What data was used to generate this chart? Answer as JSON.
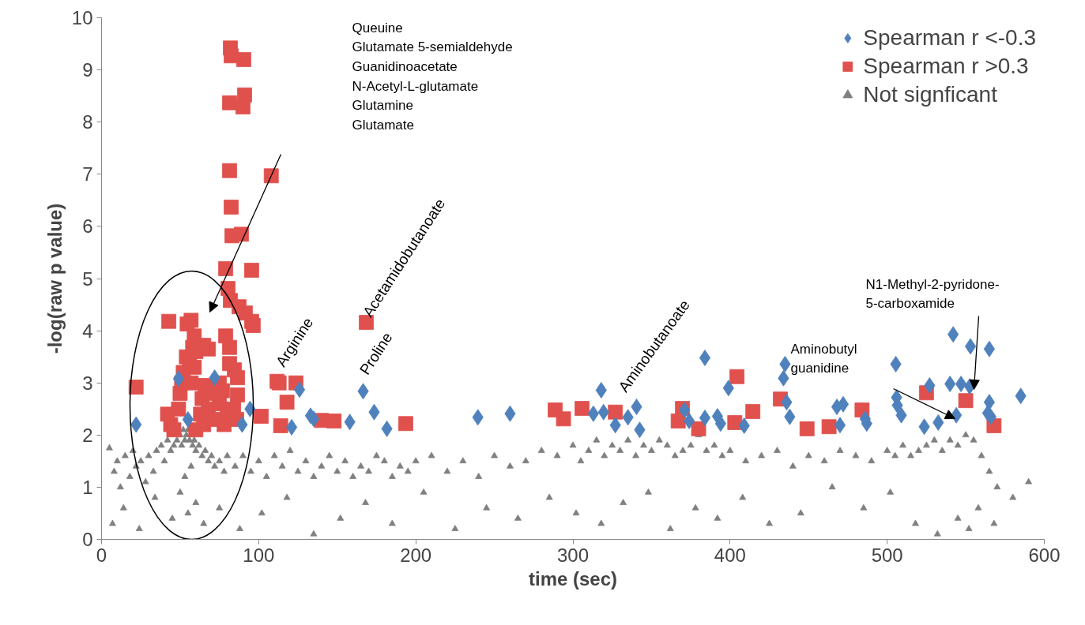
{
  "chart_data": {
    "type": "scatter",
    "xlabel": "time (sec)",
    "ylabel": "-log(raw p value)",
    "xlim": [
      0,
      600
    ],
    "ylim": [
      0,
      10
    ],
    "xticks": [
      0,
      100,
      200,
      300,
      400,
      500,
      600
    ],
    "yticks": [
      0,
      1,
      2,
      3,
      4,
      5,
      6,
      7,
      8,
      9,
      10
    ],
    "grid": false,
    "legend": "top right",
    "series": [
      {
        "name": "Spearman r <-0.3",
        "color": "#4f81bd",
        "marker": "diamond",
        "x": [
          22,
          49,
          72,
          89.5,
          94.5,
          55,
          126,
          121,
          133,
          135,
          158,
          166.5,
          173.5,
          181.6,
          239.5,
          260,
          318,
          313,
          319.5,
          327,
          335,
          340.5,
          342.5,
          384,
          371,
          374,
          384,
          392,
          394,
          399,
          409,
          435,
          434,
          436,
          438,
          468,
          472,
          470,
          487,
          486,
          505.5,
          506,
          506.5,
          509,
          523.6,
          527,
          532.5,
          542,
          540,
          547,
          553,
          552.5,
          544,
          565,
          565,
          564,
          566,
          585
        ],
        "values": [
          2.2,
          3.08,
          3.1,
          2.2,
          2.5,
          2.3,
          2.87,
          2.15,
          2.37,
          2.31,
          2.25,
          2.84,
          2.44,
          2.12,
          2.34,
          2.41,
          2.86,
          2.41,
          2.44,
          2.19,
          2.34,
          2.54,
          2.1,
          3.48,
          2.48,
          2.27,
          2.33,
          2.36,
          2.22,
          2.9,
          2.18,
          3.36,
          3.09,
          2.63,
          2.35,
          2.54,
          2.59,
          2.19,
          2.22,
          2.31,
          3.36,
          2.72,
          2.57,
          2.38,
          2.16,
          2.95,
          2.24,
          3.93,
          2.98,
          2.98,
          3.7,
          2.93,
          2.38,
          3.65,
          2.63,
          2.42,
          2.35,
          2.75
        ]
      },
      {
        "name": "Spearman r >0.3",
        "color": "#e0504d",
        "marker": "square",
        "x": [
          22,
          42.8,
          57,
          54.5,
          59,
          58,
          65,
          79,
          81.5,
          81.5,
          84.5,
          86.5,
          75,
          86.5,
          82,
          82.5,
          90.5,
          91,
          81.5,
          90,
          81.5,
          82.5,
          108,
          83,
          89,
          95.5,
          79,
          80.5,
          82,
          87.5,
          91.5,
          95.5,
          96.5,
          168.5,
          111.7,
          113,
          123.7,
          118,
          114,
          140,
          148,
          193.6,
          288.7,
          294,
          101.6,
          305.8,
          327,
          369.7,
          367,
          380,
          403,
          404.4,
          414.5,
          432,
          449,
          463,
          484,
          525,
          550,
          568,
          42,
          44,
          46,
          49,
          50,
          51,
          52,
          54,
          56,
          57,
          59,
          60,
          63,
          64,
          65,
          66,
          68,
          70,
          72,
          75,
          77,
          78,
          80,
          84,
          86,
          60,
          68
        ],
        "values": [
          2.92,
          4.18,
          4.2,
          4.13,
          3.9,
          3.68,
          3.72,
          3.9,
          3.68,
          3.37,
          3.25,
          3.1,
          3.0,
          2.77,
          9.42,
          9.27,
          9.2,
          8.52,
          8.37,
          8.29,
          7.07,
          6.37,
          6.97,
          5.82,
          5.85,
          5.16,
          5.19,
          4.81,
          4.58,
          4.46,
          4.34,
          4.18,
          4.1,
          4.16,
          3.03,
          3.0,
          3.0,
          2.63,
          2.18,
          2.28,
          2.27,
          2.22,
          2.48,
          2.31,
          2.36,
          2.51,
          2.44,
          2.51,
          2.27,
          2.12,
          2.24,
          3.12,
          2.45,
          2.69,
          2.12,
          2.16,
          2.48,
          2.81,
          2.66,
          2.18,
          2.4,
          2.2,
          2.1,
          2.5,
          2.8,
          3.0,
          3.2,
          3.5,
          3.4,
          3.0,
          3.3,
          2.1,
          2.4,
          2.7,
          2.2,
          2.95,
          2.5,
          2.8,
          2.3,
          2.6,
          2.85,
          2.2,
          2.4,
          2.5,
          2.3,
          3.6,
          3.65
        ]
      },
      {
        "name": "Not signficant",
        "color": "#808080",
        "marker": "triangle",
        "x": [
          5,
          8,
          10,
          12,
          15,
          18,
          20,
          22,
          25,
          28,
          30,
          33,
          35,
          38,
          40,
          42,
          44,
          46,
          48,
          50,
          51,
          52,
          53,
          54,
          55,
          56,
          57,
          58,
          59,
          60,
          62,
          64,
          66,
          68,
          70,
          72,
          75,
          78,
          80,
          85,
          90,
          95,
          100,
          105,
          110,
          115,
          120,
          125,
          130,
          135,
          140,
          145,
          150,
          155,
          160,
          165,
          170,
          175,
          180,
          185,
          190,
          195,
          200,
          210,
          220,
          230,
          240,
          250,
          260,
          270,
          280,
          290,
          300,
          305,
          310,
          315,
          320,
          325,
          330,
          335,
          340,
          345,
          350,
          355,
          360,
          365,
          370,
          375,
          380,
          385,
          390,
          395,
          400,
          410,
          420,
          430,
          440,
          450,
          460,
          470,
          480,
          490,
          500,
          505,
          510,
          515,
          520,
          525,
          530,
          535,
          540,
          545,
          550,
          555,
          560,
          565,
          570,
          580,
          590,
          7,
          14,
          24,
          34,
          45,
          50,
          53,
          55,
          57,
          60,
          65,
          75,
          88,
          102,
          118,
          135,
          152,
          168,
          185,
          205,
          225,
          245,
          265,
          285,
          302,
          318,
          332,
          348,
          362,
          378,
          392,
          408,
          425,
          445,
          465,
          485,
          502,
          518,
          532,
          545,
          552,
          558,
          568
        ],
        "values": [
          1.75,
          1.3,
          1.5,
          1.0,
          1.6,
          1.2,
          1.7,
          1.4,
          1.5,
          1.1,
          1.6,
          1.3,
          1.7,
          1.8,
          1.5,
          1.9,
          1.7,
          1.8,
          1.9,
          2.0,
          1.8,
          2.1,
          1.9,
          2.0,
          2.1,
          1.9,
          2.0,
          1.8,
          1.9,
          1.7,
          1.8,
          1.6,
          1.7,
          1.5,
          1.6,
          1.4,
          1.5,
          1.3,
          1.6,
          1.4,
          1.6,
          1.3,
          1.5,
          1.2,
          1.6,
          1.4,
          1.7,
          1.3,
          1.5,
          1.2,
          1.4,
          1.6,
          1.3,
          1.5,
          1.2,
          1.4,
          1.3,
          1.6,
          1.5,
          1.2,
          1.4,
          1.3,
          1.5,
          1.6,
          1.3,
          1.5,
          1.2,
          1.6,
          1.4,
          1.5,
          1.7,
          1.6,
          1.8,
          1.5,
          1.7,
          1.9,
          1.6,
          1.8,
          1.7,
          1.9,
          1.6,
          1.8,
          1.7,
          1.9,
          1.8,
          1.6,
          1.7,
          1.8,
          2.0,
          1.7,
          1.8,
          1.6,
          1.7,
          1.5,
          1.6,
          1.7,
          1.4,
          1.6,
          1.5,
          1.7,
          1.6,
          1.5,
          1.7,
          1.6,
          1.8,
          1.6,
          1.7,
          1.8,
          1.9,
          1.7,
          1.9,
          1.8,
          2.0,
          1.9,
          1.6,
          1.3,
          1.0,
          0.8,
          1.1,
          0.3,
          0.6,
          0.2,
          0.8,
          0.4,
          0.9,
          1.2,
          0.5,
          1.4,
          0.7,
          0.3,
          0.6,
          0.2,
          0.5,
          0.8,
          0.1,
          0.4,
          0.7,
          0.3,
          0.9,
          0.2,
          0.6,
          0.4,
          0.8,
          0.5,
          0.3,
          0.7,
          0.9,
          0.2,
          0.6,
          0.4,
          0.8,
          0.3,
          0.5,
          1.0,
          0.6,
          0.9,
          0.3,
          0.1,
          0.4,
          0.2,
          0.6,
          0.3
        ]
      }
    ],
    "annotations": [
      "Queuine\nGlutamate 5-semialdehyde\nGuanidinoacetate\nN-Acetyl-L-glutamate\nGlutamine\nGlutamate",
      "Arginine",
      "Acetamidobutanoate",
      "Proline",
      "Aminobutanoate",
      "Aminobutyl\nguanidine",
      "N1-Methyl-2-pyridone-\n5-carboxamide"
    ]
  }
}
